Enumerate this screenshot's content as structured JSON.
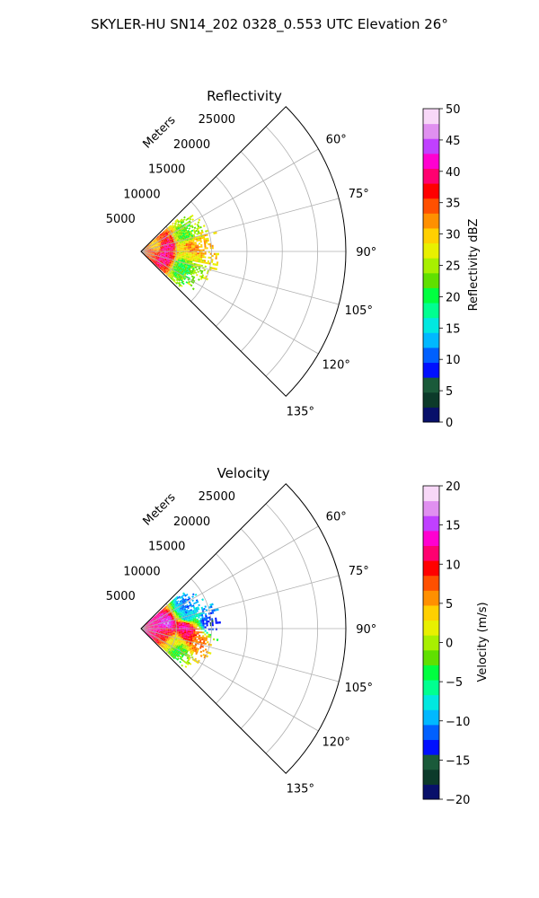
{
  "figure": {
    "suptitle": "SKYLER-HU  SN14_202  0328_0.553 UTC Elevation 26°"
  },
  "chart_data": [
    {
      "type": "heatmap",
      "projection": "polar-sector",
      "title": "Reflectivity",
      "range_label": "Meters",
      "radial_ticks": [
        5000,
        10000,
        15000,
        20000,
        25000
      ],
      "radial_tick_labels": [
        "5000",
        "10000",
        "15000",
        "20000",
        "25000"
      ],
      "rlim": [
        0,
        29000
      ],
      "theta_ticks_deg": [
        60,
        75,
        90,
        105,
        120,
        135
      ],
      "theta_tick_labels": [
        "60°",
        "75°",
        "90°",
        "105°",
        "120°",
        "135°"
      ],
      "thetalim_deg": [
        45,
        135
      ],
      "grid": true,
      "colorbar": {
        "label": "Reflectivity dBZ",
        "range": [
          0,
          50
        ],
        "ticks": [
          0,
          5,
          10,
          15,
          20,
          25,
          30,
          35,
          40,
          45,
          50
        ],
        "tick_labels": [
          "0",
          "5",
          "10",
          "15",
          "20",
          "25",
          "30",
          "35",
          "40",
          "45",
          "50"
        ]
      },
      "data_extent_m": 11000,
      "blobs": [
        {
          "az": 80,
          "r": 3500,
          "value": 40
        },
        {
          "az": 104,
          "r": 3200,
          "value": 40
        },
        {
          "az": 96,
          "r": 1500,
          "value": 35
        },
        {
          "az": 84,
          "r": 6800,
          "value": 33
        },
        {
          "az": 72,
          "r": 2000,
          "value": 30
        },
        {
          "az": 90,
          "r": 6000,
          "value": 28
        },
        {
          "az": 70,
          "r": 6500,
          "value": 22
        },
        {
          "az": 110,
          "r": 6000,
          "value": 21
        }
      ]
    },
    {
      "type": "heatmap",
      "projection": "polar-sector",
      "title": "Velocity",
      "range_label": "Meters",
      "radial_ticks": [
        5000,
        10000,
        15000,
        20000,
        25000
      ],
      "radial_tick_labels": [
        "5000",
        "10000",
        "15000",
        "20000",
        "25000"
      ],
      "rlim": [
        0,
        29000
      ],
      "theta_ticks_deg": [
        60,
        75,
        90,
        105,
        120,
        135
      ],
      "theta_tick_labels": [
        "60°",
        "75°",
        "90°",
        "105°",
        "120°",
        "135°"
      ],
      "thetalim_deg": [
        45,
        135
      ],
      "grid": true,
      "colorbar": {
        "label": "Velocity (m/s)",
        "range": [
          -20,
          20
        ],
        "ticks": [
          -20,
          -15,
          -10,
          -5,
          0,
          5,
          10,
          15,
          20
        ],
        "tick_labels": [
          "−20",
          "−15",
          "−10",
          "−5",
          "0",
          "5",
          "10",
          "15",
          "20"
        ]
      },
      "data_extent_m": 11000,
      "blobs": [
        {
          "az": 62,
          "r": 7000,
          "value": -11
        },
        {
          "az": 75,
          "r": 6500,
          "value": -9
        },
        {
          "az": 84,
          "r": 9500,
          "value": -13
        },
        {
          "az": 80,
          "r": 3500,
          "value": 15
        },
        {
          "az": 86,
          "r": 6000,
          "value": 13
        },
        {
          "az": 94,
          "r": 6500,
          "value": 11
        },
        {
          "az": 96,
          "r": 3500,
          "value": 10
        },
        {
          "az": 100,
          "r": 8000,
          "value": 7
        },
        {
          "az": 110,
          "r": 5000,
          "value": 2
        },
        {
          "az": 120,
          "r": 6000,
          "value": -3
        },
        {
          "az": 72,
          "r": 1500,
          "value": 12
        }
      ]
    }
  ],
  "colors": {
    "axes": "#000000",
    "grid": "#b0b0b0",
    "refl_colormap": [
      "#08106a",
      "#0c3a2a",
      "#1a5a3a",
      "#0010ff",
      "#0060ff",
      "#00b8ff",
      "#00e8e0",
      "#00ff90",
      "#00ff40",
      "#60e000",
      "#a8f000",
      "#e8f000",
      "#ffd000",
      "#ff9000",
      "#ff5000",
      "#ff0000",
      "#ff0070",
      "#ff00d0",
      "#c040ff",
      "#e090f0",
      "#f8d8f8"
    ],
    "vel_colormap": [
      "#08106a",
      "#0c3a2a",
      "#1a5a3a",
      "#0010ff",
      "#0060ff",
      "#00b8ff",
      "#00e8e0",
      "#00ff90",
      "#00ff40",
      "#60e000",
      "#a8f000",
      "#e8f000",
      "#ffd000",
      "#ff9000",
      "#ff5000",
      "#ff0000",
      "#ff0070",
      "#ff00d0",
      "#c040ff",
      "#e090f0",
      "#f8d8f8"
    ]
  }
}
